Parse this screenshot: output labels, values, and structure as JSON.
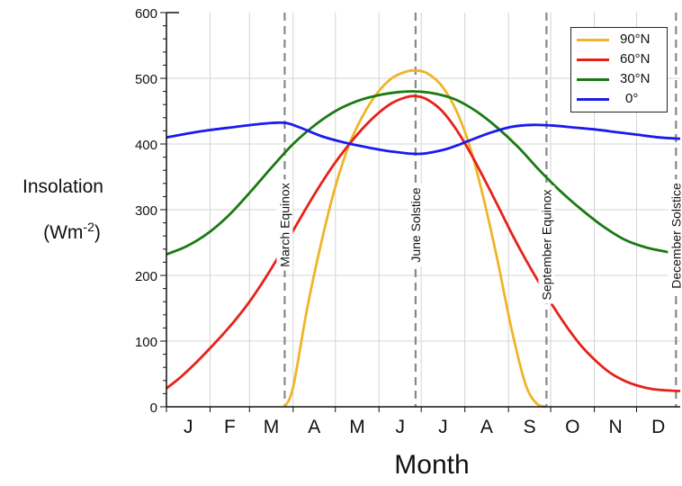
{
  "chart_data": {
    "type": "line",
    "ylabel_line1": "Insolation",
    "ylabel_line2_base": "(Wm",
    "ylabel_line2_sup": "-2",
    "ylabel_line2_end": ")",
    "xlabel": "Month",
    "ylim": [
      0,
      600
    ],
    "xlim": [
      0,
      365
    ],
    "yticks": [
      0,
      100,
      200,
      300,
      400,
      500,
      600
    ],
    "months": [
      {
        "label": "J",
        "x": 15.5
      },
      {
        "label": "F",
        "x": 45
      },
      {
        "label": "M",
        "x": 74.5
      },
      {
        "label": "A",
        "x": 105
      },
      {
        "label": "M",
        "x": 135.5
      },
      {
        "label": "J",
        "x": 166
      },
      {
        "label": "J",
        "x": 196.5
      },
      {
        "label": "A",
        "x": 227.5
      },
      {
        "label": "S",
        "x": 258
      },
      {
        "label": "O",
        "x": 288.5
      },
      {
        "label": "N",
        "x": 319
      },
      {
        "label": "D",
        "x": 349.5
      }
    ],
    "events": [
      {
        "label": "March Equinox",
        "x": 84
      },
      {
        "label": "June Solstice",
        "x": 177
      },
      {
        "label": "September Equinox",
        "x": 270
      },
      {
        "label": "December Solstice",
        "x": 362
      }
    ],
    "grid": true,
    "legend_position": "top-right",
    "series": [
      {
        "name": "90°N",
        "color": "#f0b429",
        "x": [
          84,
          90,
          100,
          110,
          120,
          130,
          140,
          150,
          160,
          170,
          177,
          185,
          195,
          205,
          215,
          225,
          235,
          245,
          255,
          263,
          270
        ],
        "y": [
          0,
          30,
          150,
          250,
          335,
          400,
          445,
          478,
          500,
          510,
          512,
          508,
          490,
          455,
          400,
          320,
          225,
          120,
          35,
          5,
          0
        ]
      },
      {
        "name": "60°N",
        "color": "#e8201a",
        "x": [
          0,
          10,
          20,
          30,
          40,
          50,
          60,
          70,
          80,
          90,
          100,
          110,
          120,
          130,
          140,
          150,
          160,
          170,
          177,
          185,
          195,
          205,
          215,
          225,
          235,
          245,
          255,
          265,
          275,
          285,
          295,
          305,
          315,
          325,
          335,
          345,
          355,
          365
        ],
        "y": [
          28,
          45,
          65,
          87,
          110,
          135,
          163,
          195,
          230,
          268,
          305,
          340,
          372,
          400,
          425,
          446,
          462,
          471,
          473,
          468,
          452,
          425,
          390,
          350,
          308,
          265,
          225,
          188,
          152,
          120,
          92,
          70,
          52,
          40,
          32,
          27,
          25,
          24
        ]
      },
      {
        "name": "30°N",
        "color": "#1a7a12",
        "x": [
          0,
          15,
          30,
          45,
          60,
          75,
          90,
          105,
          120,
          135,
          150,
          165,
          177,
          190,
          205,
          220,
          235,
          250,
          265,
          280,
          295,
          310,
          325,
          340,
          355,
          365
        ],
        "y": [
          232,
          245,
          265,
          293,
          328,
          365,
          400,
          428,
          450,
          465,
          474,
          479,
          480,
          477,
          468,
          450,
          425,
          395,
          360,
          328,
          300,
          275,
          255,
          243,
          236,
          232
        ]
      },
      {
        "name": "0°",
        "color": "#1a1aee",
        "x": [
          0,
          15,
          30,
          45,
          60,
          75,
          85,
          95,
          110,
          125,
          140,
          155,
          170,
          177,
          185,
          200,
          215,
          230,
          245,
          260,
          275,
          290,
          305,
          320,
          335,
          350,
          365
        ],
        "y": [
          410,
          416,
          421,
          425,
          429,
          432,
          432,
          425,
          412,
          403,
          396,
          390,
          386,
          385,
          386,
          393,
          405,
          417,
          426,
          429,
          428,
          425,
          422,
          418,
          414,
          410,
          408
        ]
      }
    ]
  }
}
